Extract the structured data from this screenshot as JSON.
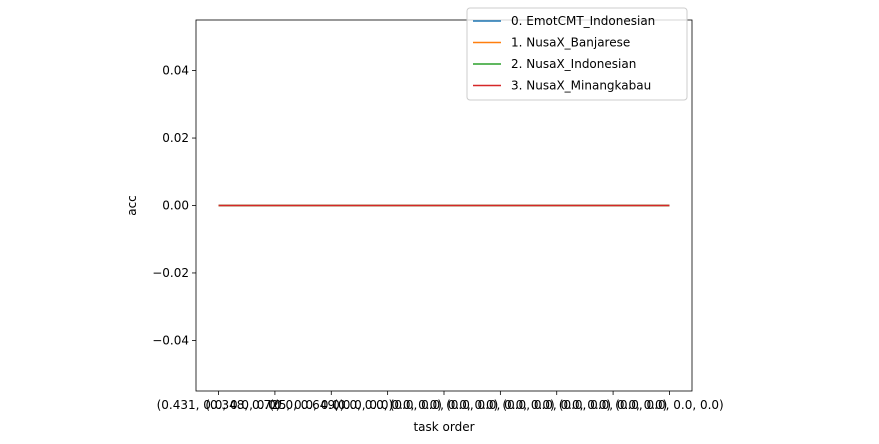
{
  "chart_data": {
    "type": "line",
    "title": "",
    "xlabel": "task order",
    "ylabel": "acc",
    "x_tick_labels": [
      "(0.431, 0.0, 0.0, 0.0)",
      "(0.348, 0.725, 0.0, 0.0)",
      "(0.0, 0.649, 0.0, 0.0)",
      "(0.0, 0.0, 0.0, 0.0)",
      "(0.0, 0.0, 0.0, 0.0)",
      "(0.0, 0.0, 0.0, 0.0)",
      "(0.0, 0.0, 0.0, 0.0)",
      "(0.0, 0.0, 0.0, 0.0)",
      "(0.0, 0.0, 0.0, 0.0)"
    ],
    "x": [
      0,
      1,
      2,
      3,
      4,
      5,
      6,
      7,
      8
    ],
    "ylim": [
      -0.055,
      0.055
    ],
    "y_ticks": [
      -0.04,
      -0.02,
      0.0,
      0.02,
      0.04
    ],
    "y_tick_labels": [
      "−0.04",
      "−0.02",
      "0.00",
      "0.02",
      "0.04"
    ],
    "grid": false,
    "legend_position": "top-right",
    "series": [
      {
        "name": "0. EmotCMT_Indonesian",
        "color": "#1f77b4",
        "values": [
          0,
          0,
          0,
          0,
          0,
          0,
          0,
          0,
          0
        ]
      },
      {
        "name": "1. NusaX_Banjarese",
        "color": "#ff7f0e",
        "values": [
          0,
          0,
          0,
          0,
          0,
          0,
          0,
          0,
          0
        ]
      },
      {
        "name": "2. NusaX_Indonesian",
        "color": "#2ca02c",
        "values": [
          0,
          0,
          0,
          0,
          0,
          0,
          0,
          0,
          0
        ]
      },
      {
        "name": "3. NusaX_Minangkabau",
        "color": "#d62728",
        "values": [
          0,
          0,
          0,
          0,
          0,
          0,
          0,
          0,
          0
        ]
      }
    ]
  }
}
